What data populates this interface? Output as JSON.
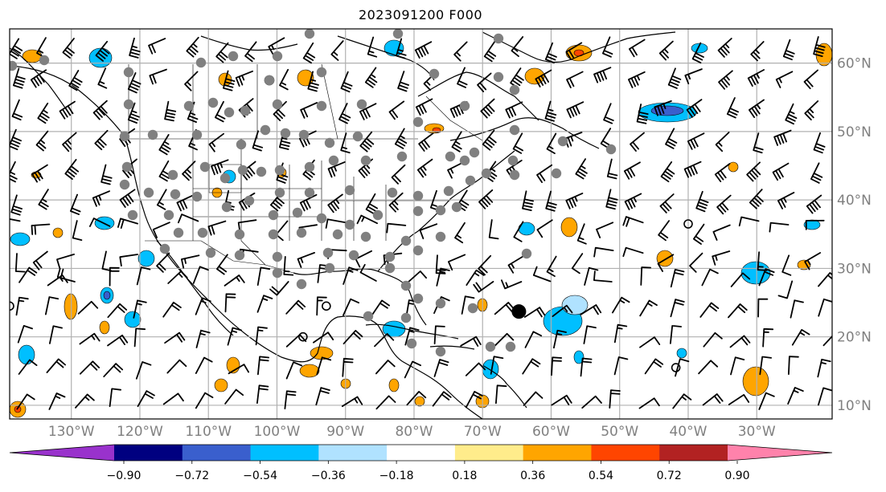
{
  "title": "2023091200 F000",
  "map": {
    "lon_range": [
      -139,
      -19
    ],
    "lat_range": [
      8,
      65
    ],
    "lon_ticks": [
      -130,
      -120,
      -110,
      -100,
      -90,
      -80,
      -70,
      -60,
      -50,
      -40,
      -30
    ],
    "lat_ticks": [
      10,
      20,
      30,
      40,
      50,
      60
    ],
    "lon_tick_labels": [
      "130°W",
      "120°W",
      "110°W",
      "100°W",
      "90°W",
      "80°W",
      "70°W",
      "60°W",
      "50°W",
      "40°W",
      "30°W"
    ],
    "lat_tick_labels": [
      "10°N",
      "20°N",
      "30°N",
      "40°N",
      "50°N",
      "60°N"
    ],
    "gridlines": true,
    "grid_color": "#b0b0b0",
    "label_color": "#808080"
  },
  "colorbar": {
    "colors": [
      "#9932cc",
      "#000080",
      "#3a5fcd",
      "#00bfff",
      "#b0e2ff",
      "#ffffff",
      "#ffec8b",
      "#ffa500",
      "#ff4500",
      "#b22222",
      "#ff82ab"
    ],
    "tick_labels": [
      "−0.90",
      "−0.72",
      "−0.54",
      "−0.36",
      "−0.18",
      "0.18",
      "0.36",
      "0.54",
      "0.72",
      "0.90"
    ],
    "extend": "both"
  },
  "markers": {
    "large_black_dot": {
      "lon": -64.7,
      "lat": 23.7
    },
    "open_circles": [
      {
        "lon": -40.0,
        "lat": 36.5
      },
      {
        "lon": -92.8,
        "lat": 24.5
      },
      {
        "lon": -96.2,
        "lat": 20.0
      },
      {
        "lon": -41.8,
        "lat": 15.5
      },
      {
        "lon": -139.0,
        "lat": 24.5
      }
    ]
  }
}
